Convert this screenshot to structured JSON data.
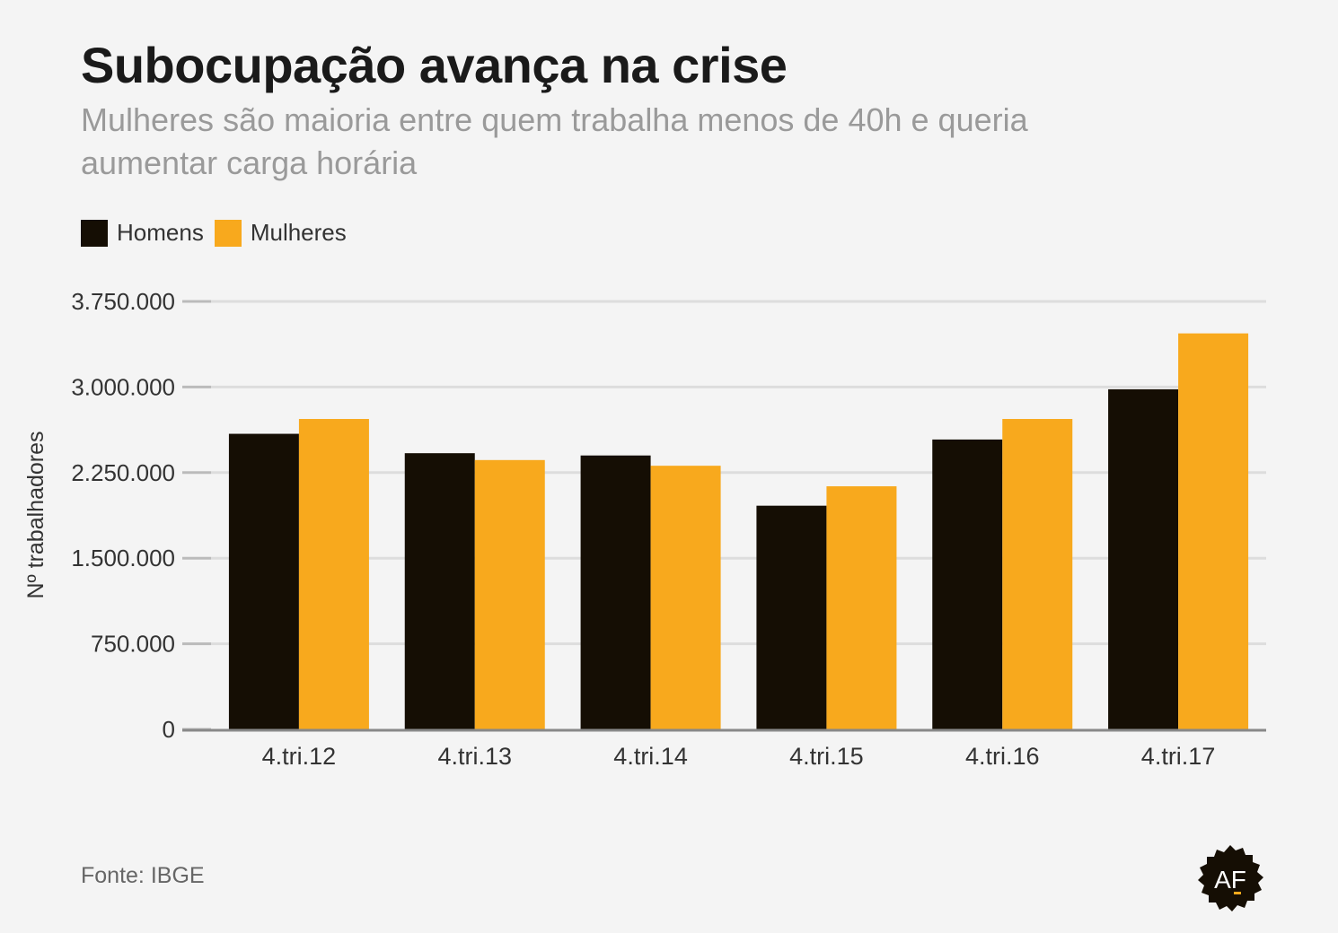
{
  "header": {
    "title": "Subocupação avança na crise",
    "subtitle": "Mulheres são maioria entre quem trabalha menos de 40h e queria aumentar carga horária"
  },
  "footer": {
    "source": "Fonte: IBGE",
    "logo_text": "AF"
  },
  "colors": {
    "homens": "#150e04",
    "mulheres": "#f8a91d",
    "grid": "#dddddd",
    "axis": "#888888",
    "background": "#f4f4f4"
  },
  "chart_data": {
    "type": "bar",
    "title": "Subocupação avança na crise",
    "subtitle": "Mulheres são maioria entre quem trabalha menos de 40h e queria aumentar carga horária",
    "xlabel": "",
    "ylabel": "Nº trabalhadores",
    "ylim": [
      0,
      3750000
    ],
    "yticks": [
      0,
      750000,
      1500000,
      2250000,
      3000000,
      3750000
    ],
    "ytick_labels": [
      "0",
      "750.000",
      "1.500.000",
      "2.250.000",
      "3.000.000",
      "3.750.000"
    ],
    "grid": true,
    "legend_position": "top-left",
    "categories": [
      "4.tri.12",
      "4.tri.13",
      "4.tri.14",
      "4.tri.15",
      "4.tri.16",
      "4.tri.17"
    ],
    "series": [
      {
        "name": "Homens",
        "color": "#150e04",
        "values": [
          2590000,
          2420000,
          2400000,
          1960000,
          2540000,
          2980000
        ]
      },
      {
        "name": "Mulheres",
        "color": "#f8a91d",
        "values": [
          2720000,
          2360000,
          2310000,
          2130000,
          2720000,
          3470000
        ]
      }
    ]
  }
}
